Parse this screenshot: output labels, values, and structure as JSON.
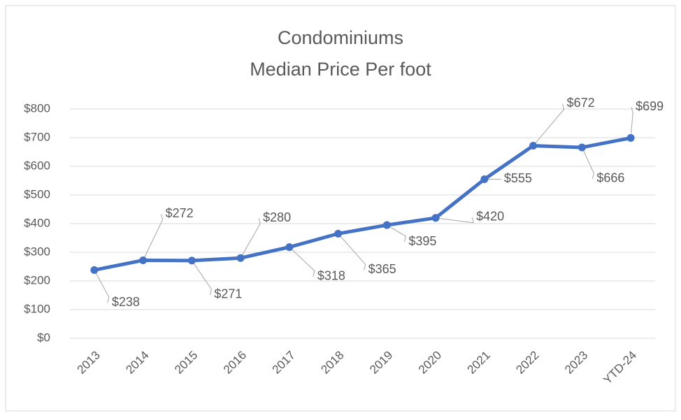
{
  "chart_data": {
    "type": "line",
    "title": [
      "Condominiums",
      "Median Price Per foot"
    ],
    "categories": [
      "2013",
      "2014",
      "2015",
      "2016",
      "2017",
      "2018",
      "2019",
      "2020",
      "2021",
      "2022",
      "2023",
      "YTD-24"
    ],
    "series": [
      {
        "color": "#4472c4",
        "values": [
          238,
          272,
          271,
          280,
          318,
          365,
          395,
          420,
          555,
          672,
          666,
          699
        ],
        "value_labels": [
          "$238",
          "$272",
          "$271",
          "$280",
          "$318",
          "$365",
          "$395",
          "$420",
          "$555",
          "$672",
          "$666",
          "$699"
        ]
      }
    ],
    "ylim": [
      0,
      800
    ],
    "yticks": [
      {
        "value": 0,
        "label": "$0"
      },
      {
        "value": 100,
        "label": "$100"
      },
      {
        "value": 200,
        "label": "$200"
      },
      {
        "value": 300,
        "label": "$300"
      },
      {
        "value": 400,
        "label": "$400"
      },
      {
        "value": 500,
        "label": "$500"
      },
      {
        "value": 600,
        "label": "$600"
      },
      {
        "value": 700,
        "label": "$700"
      },
      {
        "value": 800,
        "label": "$800"
      }
    ],
    "grid": true
  }
}
